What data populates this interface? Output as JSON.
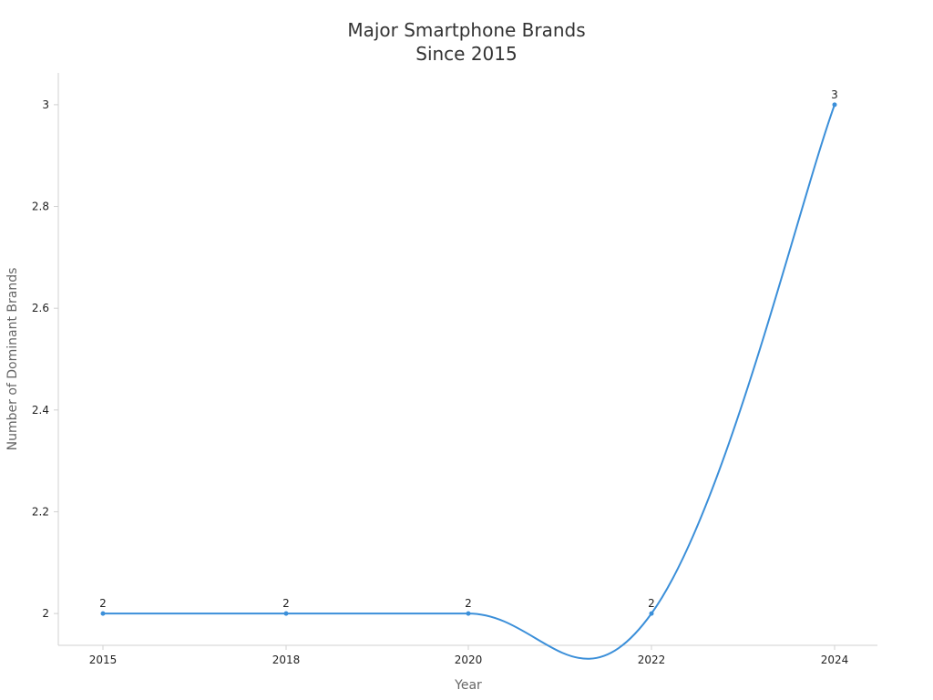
{
  "chart_data": {
    "type": "line",
    "title": [
      "Major Smartphone Brands",
      "Since 2015"
    ],
    "xlabel": "Year",
    "ylabel": "Number of Dominant Brands",
    "categories": [
      "2015",
      "2018",
      "2020",
      "2022",
      "2024"
    ],
    "series": [
      {
        "values": [
          2,
          2,
          2,
          2,
          3
        ],
        "data_labels": [
          "2",
          "2",
          "2",
          "2",
          "3"
        ]
      }
    ],
    "ylim": [
      1.9375,
      3.0625
    ],
    "yticks": [
      2,
      2.2,
      2.4,
      2.6,
      2.8,
      3
    ],
    "ytick_labels": [
      "2",
      "2.2",
      "2.4",
      "2.6",
      "2.8",
      "3"
    ],
    "smooth": true,
    "grid": false,
    "legend": "none",
    "colors": {
      "line": "#3b8fd9",
      "axis": "#d0d0d0",
      "title": "#333333",
      "axis_title": "#666666",
      "tick_text": "#222222"
    }
  }
}
